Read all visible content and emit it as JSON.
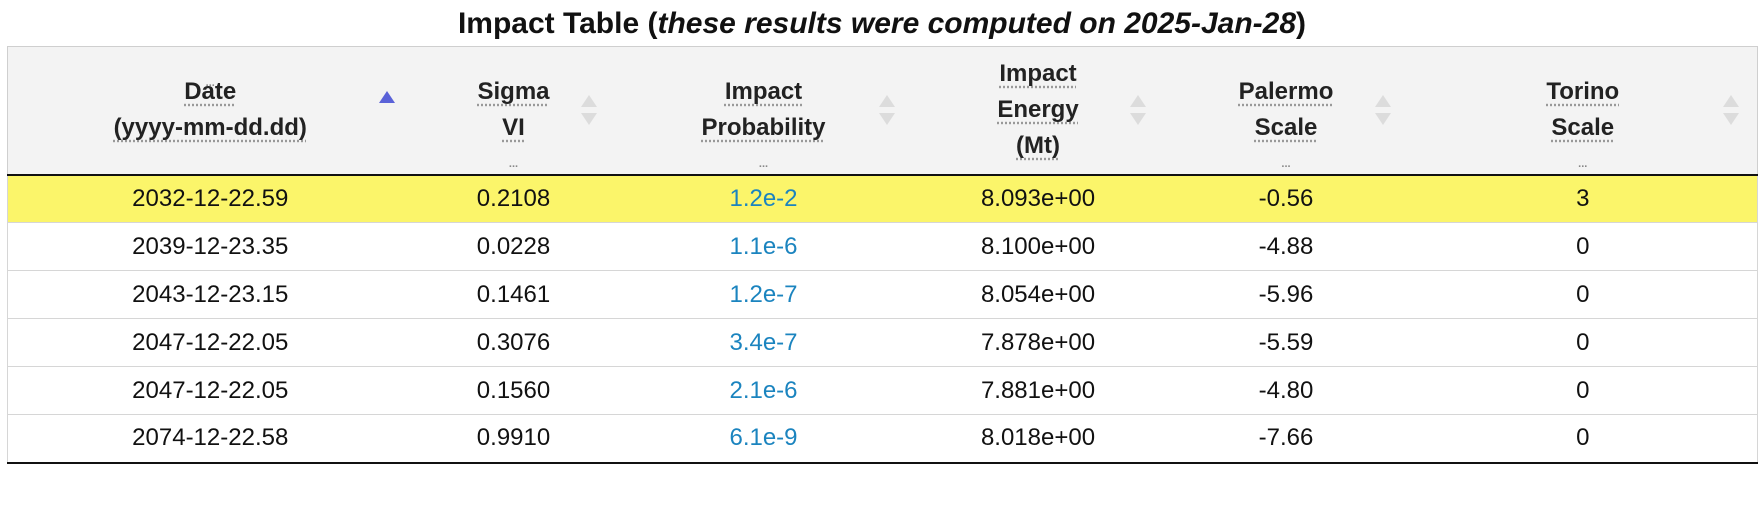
{
  "title": {
    "main": "Impact Table (",
    "italic": "these results were computed on 2025-Jan-28",
    "close": ")"
  },
  "columns": [
    {
      "lines": [
        "Date",
        "(yyyy-mm-dd.dd)"
      ],
      "sort": "ascending"
    },
    {
      "lines": [
        "Sigma",
        "VI"
      ],
      "sort": "none"
    },
    {
      "lines": [
        "Impact",
        "Probability"
      ],
      "sort": "none"
    },
    {
      "lines": [
        "Impact",
        "Energy",
        "(Mt)"
      ],
      "sort": "none"
    },
    {
      "lines": [
        "Palermo",
        "Scale"
      ],
      "sort": "none"
    },
    {
      "lines": [
        "Torino",
        "Scale"
      ],
      "sort": "none"
    }
  ],
  "rows": [
    {
      "date": "2032-12-22.59",
      "sigma": "0.2108",
      "prob": "1.2e-2",
      "energy": "8.093e+00",
      "palermo": "-0.56",
      "torino": "3"
    },
    {
      "date": "2039-12-23.35",
      "sigma": "0.0228",
      "prob": "1.1e-6",
      "energy": "8.100e+00",
      "palermo": "-4.88",
      "torino": "0"
    },
    {
      "date": "2043-12-23.15",
      "sigma": "0.1461",
      "prob": "1.2e-7",
      "energy": "8.054e+00",
      "palermo": "-5.96",
      "torino": "0"
    },
    {
      "date": "2047-12-22.05",
      "sigma": "0.3076",
      "prob": "3.4e-7",
      "energy": "7.878e+00",
      "palermo": "-5.59",
      "torino": "0"
    },
    {
      "date": "2047-12-22.05",
      "sigma": "0.1560",
      "prob": "2.1e-6",
      "energy": "7.881e+00",
      "palermo": "-4.80",
      "torino": "0"
    },
    {
      "date": "2074-12-22.58",
      "sigma": "0.9910",
      "prob": "6.1e-9",
      "energy": "8.018e+00",
      "palermo": "-7.66",
      "torino": "0"
    }
  ],
  "colors": {
    "highlight_row": "#fbf56a",
    "link": "#1b84bf",
    "sort_active": "#5a62d8",
    "sort_inactive": "#dcdcdc"
  }
}
